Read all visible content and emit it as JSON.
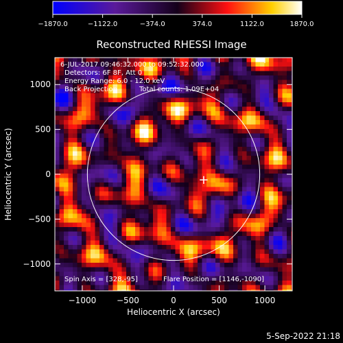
{
  "colors": {
    "background": "#000000",
    "foreground": "#ffffff",
    "colormap": [
      "#0000ff",
      "#5a1a9a",
      "#14001a",
      "#ff1010",
      "#ffd000",
      "#ffffff"
    ]
  },
  "chart_data": {
    "type": "heatmap",
    "title": "Reconstructed RHESSI Image",
    "xlabel": "Heliocentric X (arcsec)",
    "ylabel": "Heliocentric Y (arcsec)",
    "xlim": [
      -1300,
      1300
    ],
    "ylim": [
      -1300,
      1300
    ],
    "xticks": [
      -1000,
      -500,
      0,
      500,
      1000
    ],
    "yticks": [
      -1000,
      -500,
      0,
      500,
      1000
    ],
    "xtick_labels": [
      "−1000",
      "−500",
      "0",
      "500",
      "1000"
    ],
    "ytick_labels": [
      "−1000",
      "−500",
      "0",
      "500",
      "1000"
    ],
    "colorbar": {
      "range": [
        -1870.0,
        1870.0
      ],
      "ticks": [
        -1870.0,
        -1122.0,
        -374.0,
        374.0,
        1122.0,
        1870.0
      ],
      "tick_labels": [
        "−1870.0",
        "−1122.0",
        "−374.0",
        "374.0",
        "1122.0",
        "1870.0"
      ]
    },
    "annotations": [
      "6-JUL-2017 09:46:32.000 to 09:52:32.000",
      "Detectors: 6F 8F, Att 0",
      "Energy Range: 6.0 - 12.0 keV",
      "Back Projection",
      "Total counts: 1.09E+04"
    ],
    "bottom_annotations": [
      "Spin Axis = [328,-95]",
      "Flare Position = [1146,-1090]"
    ],
    "solar_limb_radius": 944,
    "marker": {
      "label": "+",
      "x": 330,
      "y": -60
    },
    "timestamp": "5-Sep-2022 21:18"
  }
}
